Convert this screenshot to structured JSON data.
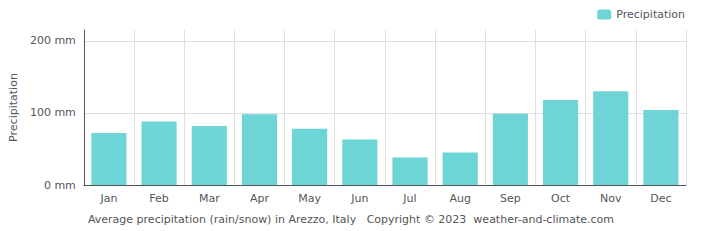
{
  "chart_data": {
    "type": "bar",
    "categories": [
      "Jan",
      "Feb",
      "Mar",
      "Apr",
      "May",
      "Jun",
      "Jul",
      "Aug",
      "Sep",
      "Oct",
      "Nov",
      "Dec"
    ],
    "series": [
      {
        "name": "Precipitation",
        "color": "#6dd5d5",
        "values": [
          72,
          88,
          82,
          98,
          78,
          63,
          38,
          45,
          99,
          118,
          130,
          104
        ]
      }
    ],
    "ylabel": "Precipitation",
    "ylim": [
      0,
      215
    ],
    "yticks": [
      {
        "value": 0,
        "label": "0 mm"
      },
      {
        "value": 100,
        "label": "100 mm"
      },
      {
        "value": 200,
        "label": "200 mm"
      }
    ],
    "grid": true,
    "legend": "upper right",
    "annotations": [
      "Average precipitation (rain/snow) in Arezzo, Italy   Copyright © 2023  weather-and-climate.com"
    ]
  }
}
